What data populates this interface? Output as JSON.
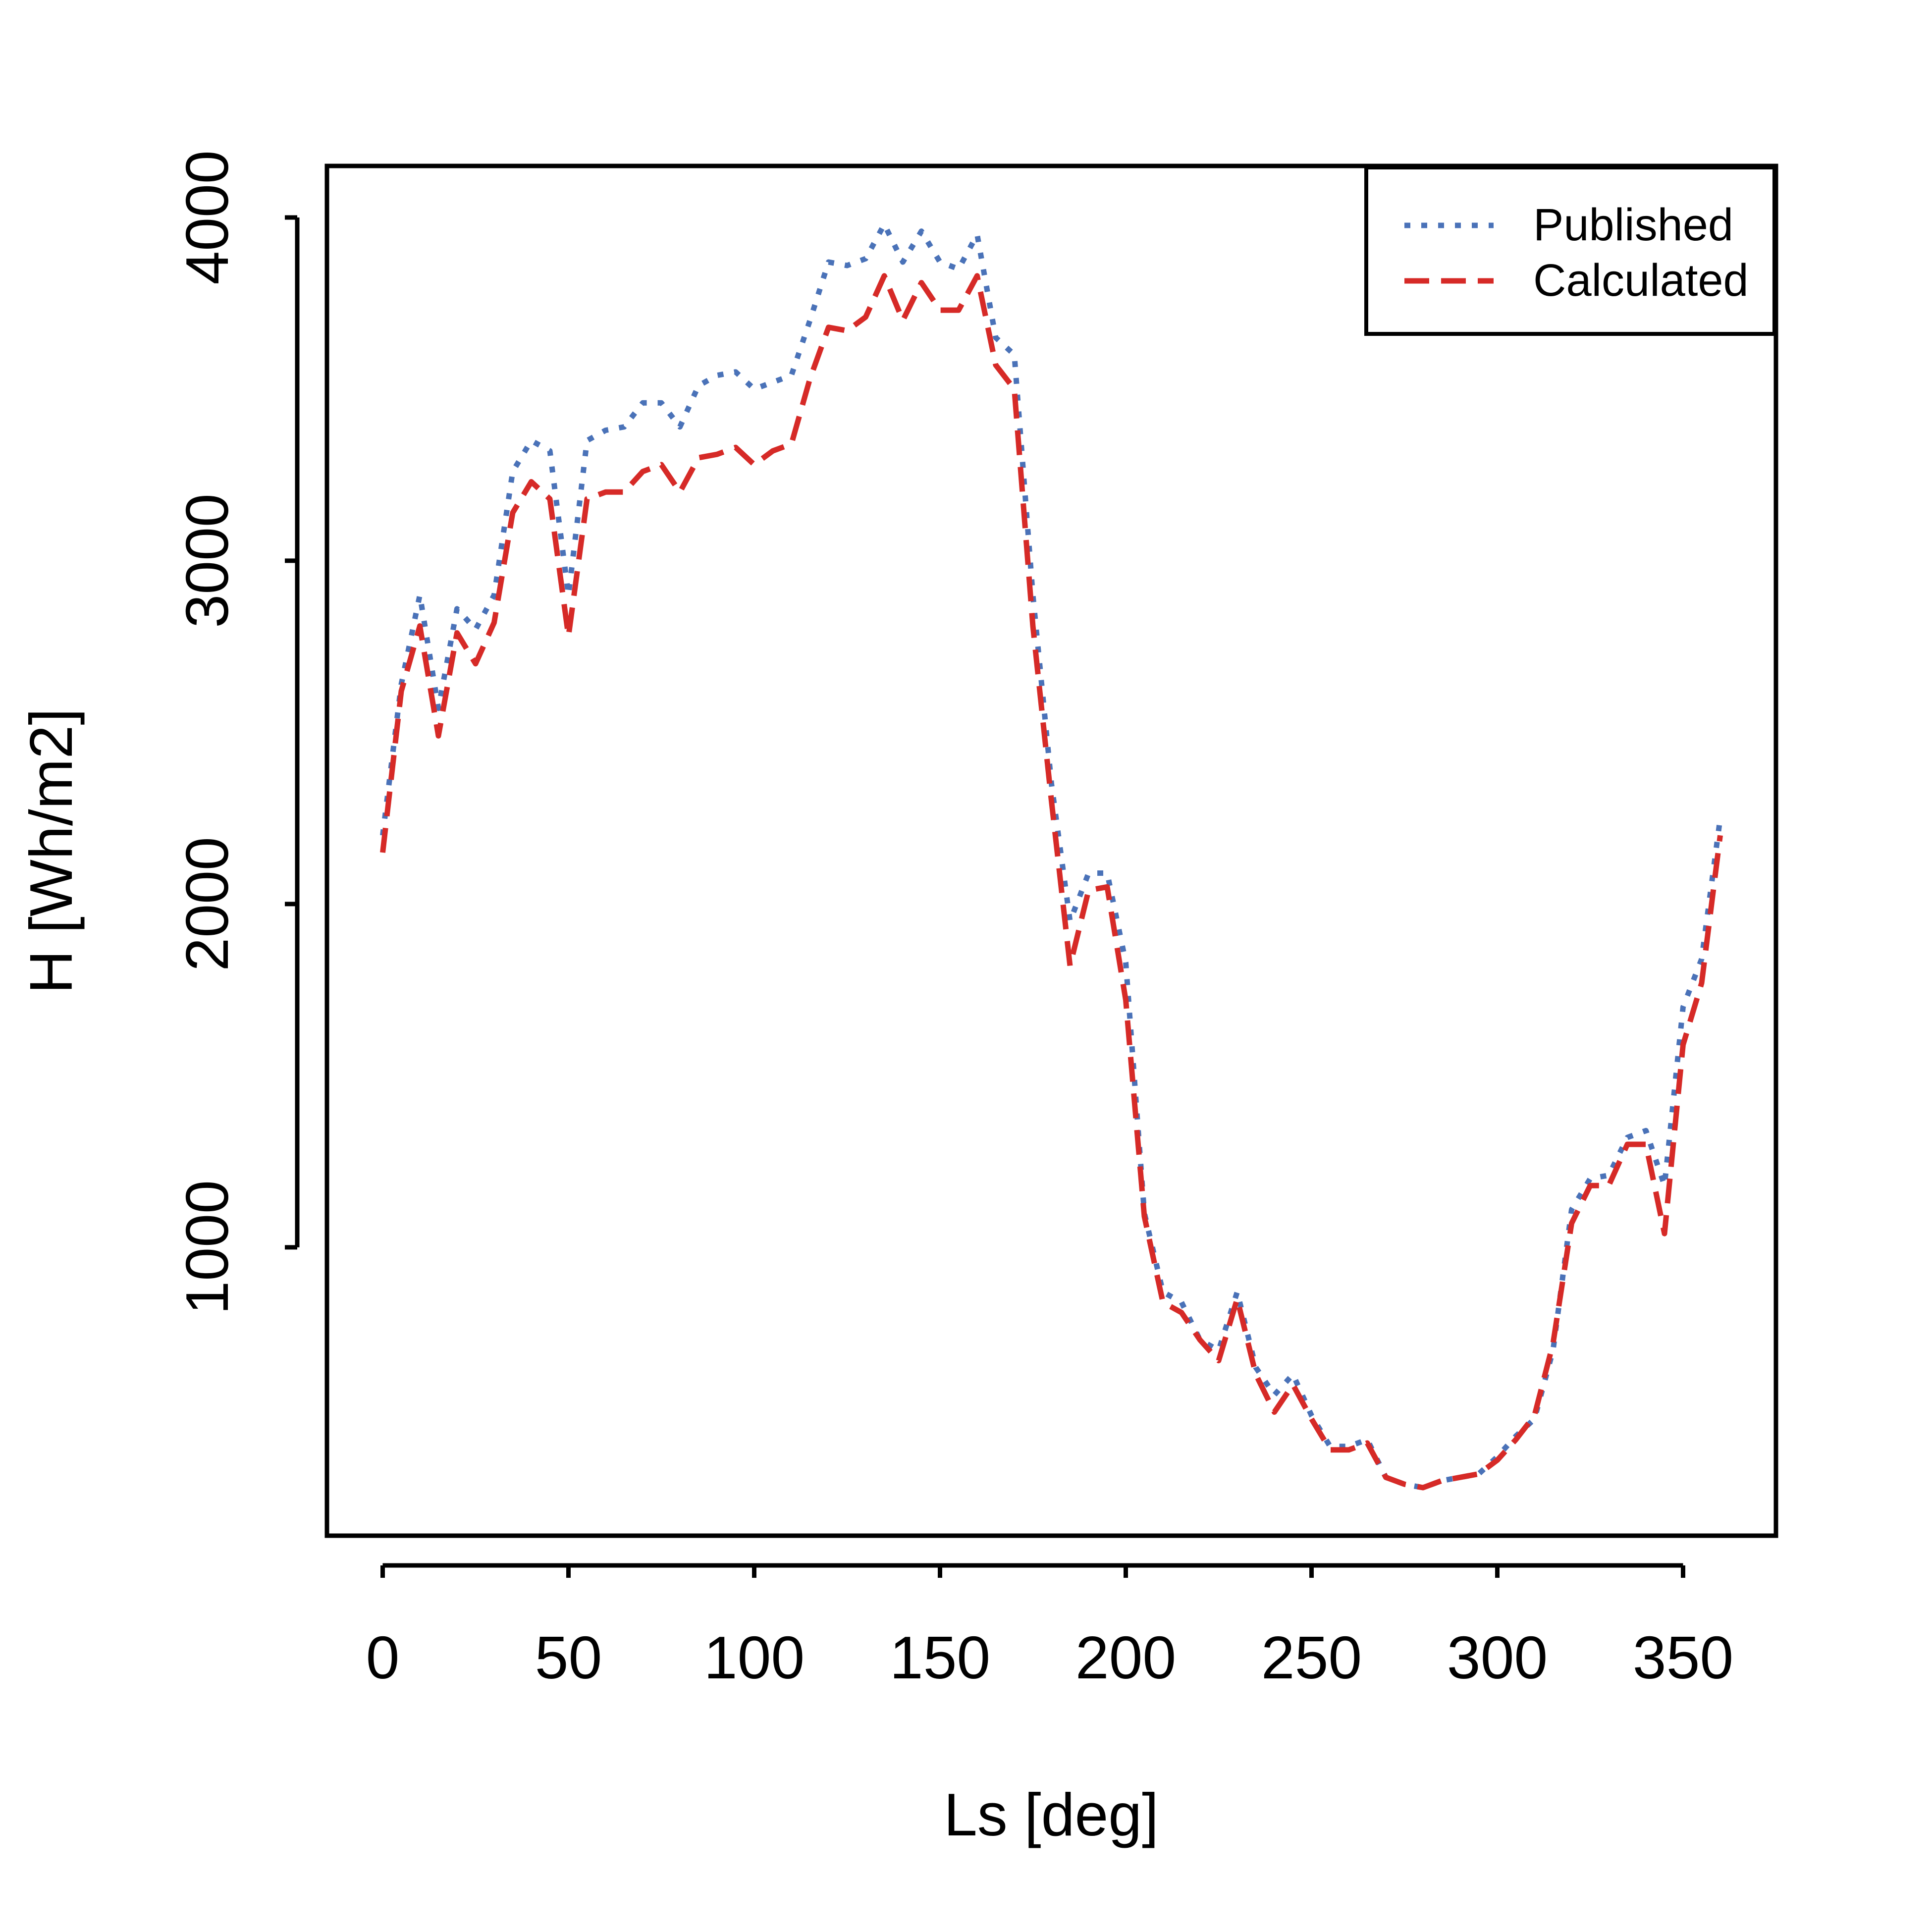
{
  "chart_data": {
    "type": "line",
    "title": "",
    "xlabel": "Ls [deg]",
    "ylabel": "H [Wh/m2]",
    "xlim": [
      -15,
      375
    ],
    "ylim": [
      160,
      4150
    ],
    "x_ticks": [
      0,
      50,
      100,
      150,
      200,
      250,
      300,
      350
    ],
    "y_ticks": [
      1000,
      2000,
      3000,
      4000
    ],
    "grid": false,
    "legend_position": "top-right",
    "x": [
      0,
      5,
      10,
      15,
      20,
      25,
      30,
      35,
      40,
      45,
      50,
      55,
      60,
      65,
      70,
      75,
      80,
      85,
      90,
      95,
      100,
      105,
      110,
      115,
      120,
      125,
      130,
      135,
      140,
      145,
      150,
      155,
      160,
      165,
      170,
      175,
      180,
      185,
      190,
      195,
      200,
      205,
      210,
      215,
      220,
      225,
      230,
      235,
      240,
      245,
      250,
      255,
      260,
      265,
      270,
      275,
      280,
      285,
      290,
      295,
      300,
      305,
      310,
      315,
      320,
      325,
      330,
      335,
      340,
      345,
      350,
      355,
      360
    ],
    "series": [
      {
        "name": "Published",
        "color": "#4a72b8",
        "dash": "dotted",
        "values": [
          2200,
          2640,
          2900,
          2570,
          2860,
          2800,
          2900,
          3260,
          3350,
          3320,
          2900,
          3350,
          3380,
          3390,
          3460,
          3460,
          3390,
          3510,
          3540,
          3550,
          3500,
          3520,
          3540,
          3700,
          3870,
          3860,
          3880,
          3980,
          3870,
          3960,
          3870,
          3850,
          3950,
          3650,
          3600,
          2900,
          2350,
          1950,
          2090,
          2090,
          1830,
          1100,
          870,
          840,
          730,
          700,
          870,
          650,
          570,
          630,
          510,
          420,
          420,
          440,
          330,
          310,
          300,
          320,
          330,
          340,
          390,
          450,
          500,
          700,
          1110,
          1200,
          1210,
          1320,
          1340,
          1180,
          1700,
          1840,
          2250
        ]
      },
      {
        "name": "Calculated",
        "color": "#d62a27",
        "dash": "dashed",
        "values": [
          2150,
          2620,
          2810,
          2490,
          2790,
          2700,
          2820,
          3140,
          3230,
          3180,
          2780,
          3180,
          3200,
          3200,
          3260,
          3280,
          3200,
          3300,
          3310,
          3330,
          3280,
          3320,
          3340,
          3530,
          3680,
          3670,
          3710,
          3830,
          3700,
          3810,
          3730,
          3730,
          3830,
          3570,
          3500,
          2810,
          2300,
          1820,
          2040,
          2050,
          1720,
          1090,
          840,
          810,
          730,
          670,
          850,
          630,
          520,
          600,
          500,
          410,
          410,
          430,
          330,
          310,
          300,
          320,
          330,
          340,
          380,
          440,
          510,
          720,
          1070,
          1180,
          1180,
          1300,
          1300,
          1040,
          1590,
          1770,
          2200
        ]
      }
    ]
  }
}
